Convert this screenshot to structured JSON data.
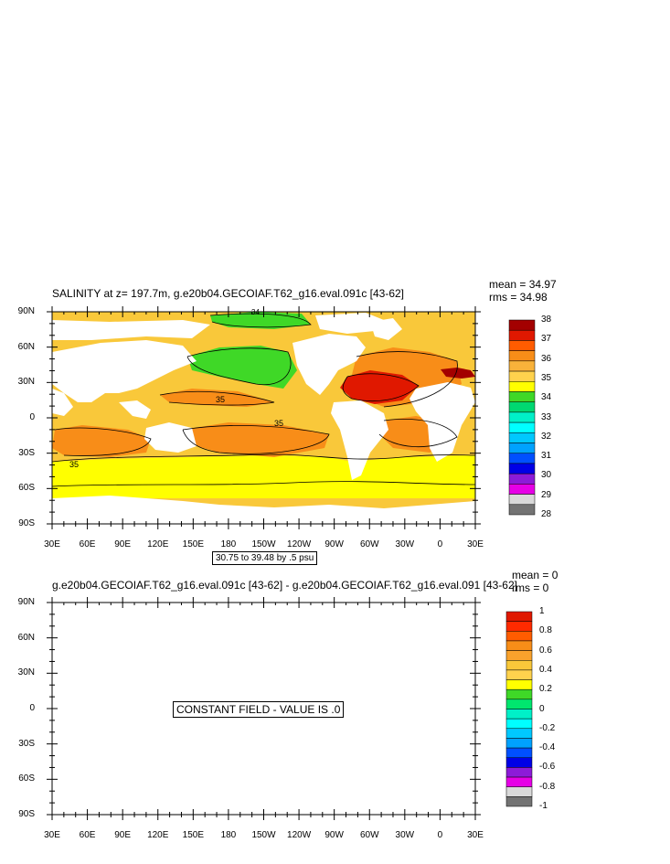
{
  "top_plot": {
    "title": "SALINITY at z= 197.7m, g.e20b04.GECOIAF.T62_g16.eval.091c [43-62]",
    "mean": "mean = 34.97",
    "rms": "rms = 34.98",
    "range_note": "30.75 to 39.48 by .5 psu",
    "contour_labels": [
      "34",
      "35",
      "35",
      "35",
      "35",
      "35"
    ]
  },
  "bottom_plot": {
    "title": "g.e20b04.GECOIAF.T62_g16.eval.091c [43-62] - g.e20b04.GECOIAF.T62_g16.eval.091 [43-62]",
    "mean": "mean = 0",
    "rms": "rms = 0",
    "message": "CONSTANT FIELD - VALUE IS .0"
  },
  "lat_labels": [
    "90N",
    "60N",
    "30N",
    "0",
    "30S",
    "60S",
    "90S"
  ],
  "lon_labels": [
    "30E",
    "60E",
    "90E",
    "120E",
    "150E",
    "180",
    "150W",
    "120W",
    "90W",
    "60W",
    "30W",
    "0",
    "30E"
  ],
  "chart_data": [
    {
      "type": "heatmap",
      "title": "SALINITY at z= 197.7m, g.e20b04.GECOIAF.T62_g16.eval.091c [43-62]",
      "x_ticks": [
        "30E",
        "60E",
        "90E",
        "120E",
        "150E",
        "180",
        "150W",
        "120W",
        "90W",
        "60W",
        "30W",
        "0",
        "30E"
      ],
      "y_ticks": [
        "90N",
        "60N",
        "30N",
        "0",
        "30S",
        "60S",
        "90S"
      ],
      "colorbar_levels": [
        "38",
        "37",
        "36",
        "35",
        "34",
        "33",
        "32",
        "31",
        "30",
        "29",
        "28"
      ],
      "colorbar_colors": [
        "#a30000",
        "#e01800",
        "#ff5c00",
        "#f88d18",
        "#f9b23a",
        "#ffd24d",
        "#ffff00",
        "#3fd827",
        "#00d871",
        "#00f0c8",
        "#00ffff",
        "#00c8ff",
        "#00a2ff",
        "#0050ff",
        "#0000e6",
        "#8c1bd8",
        "#e600e6",
        "#d9d9d9",
        "#737373"
      ],
      "mean": 34.97,
      "rms": 34.98,
      "range_min": 30.75,
      "range_max": 39.48,
      "interval": 0.5,
      "unit": "psu"
    },
    {
      "type": "heatmap",
      "title": "g.e20b04.GECOIAF.T62_g16.eval.091c [43-62] - g.e20b04.GECOIAF.T62_g16.eval.091 [43-62]",
      "x_ticks": [
        "30E",
        "60E",
        "90E",
        "120E",
        "150E",
        "180",
        "150W",
        "120W",
        "90W",
        "60W",
        "30W",
        "0",
        "30E"
      ],
      "y_ticks": [
        "90N",
        "60N",
        "30N",
        "0",
        "30S",
        "60S",
        "90S"
      ],
      "colorbar_levels": [
        "1",
        "0.8",
        "0.6",
        "0.4",
        "0.2",
        "0",
        "-0.2",
        "-0.4",
        "-0.6",
        "-0.8",
        "-1"
      ],
      "colorbar_colors": [
        "#e01800",
        "#ff2a00",
        "#ff5c00",
        "#f88d18",
        "#f9a22c",
        "#f9c83a",
        "#ffd24d",
        "#ffff00",
        "#3fd827",
        "#00e66e",
        "#00f0c8",
        "#00ffff",
        "#00c8ff",
        "#00a2ff",
        "#0050ff",
        "#0000e6",
        "#8c1bd8",
        "#e600e6",
        "#d9d9d9",
        "#737373"
      ],
      "mean": 0,
      "rms": 0,
      "constant_value": 0
    }
  ]
}
